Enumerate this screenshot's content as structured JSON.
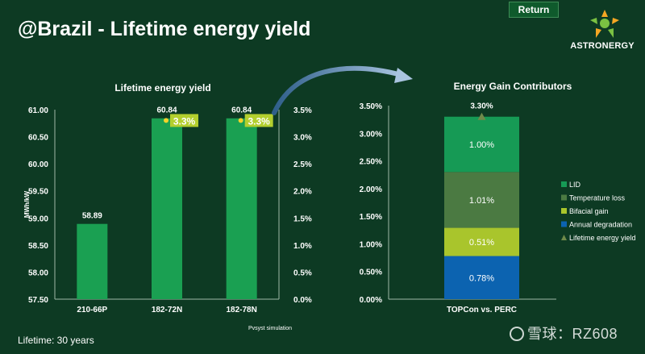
{
  "header": {
    "title": "@Brazil - Lifetime energy yield",
    "return_label": "Return",
    "logo_text": "ASTRONERGY"
  },
  "footer": {
    "lifetime_note": "Lifetime: 30 years",
    "watermark": "雪球：RZ608"
  },
  "colors": {
    "background": "#0d3a23",
    "bar_green": "#1aa052",
    "lid": "#169a55",
    "temperature_loss": "#4b7a42",
    "bifacial_gain": "#a9c52c",
    "annual_degradation": "#0c63b0",
    "marker": "#6f8a4a",
    "percent_box": "#b3cf2e",
    "percent_dot": "#f4d22a"
  },
  "chart_data": [
    {
      "type": "bar",
      "title": "Lifetime energy yield",
      "categories": [
        "210-66P",
        "182-72N",
        "182-78N"
      ],
      "series": [
        {
          "values": [
            58.89,
            60.84,
            60.84
          ]
        }
      ],
      "value_labels": [
        "58.89",
        "60.84",
        "60.84"
      ],
      "percent_labels": [
        "",
        "3.3%",
        "3.3%"
      ],
      "percent_values": [
        0,
        3.3,
        3.3
      ],
      "ylabel": "MWh/kW",
      "ylim": [
        57.5,
        61.0
      ],
      "y_ticks": [
        "61.00",
        "60.50",
        "60.00",
        "59.50",
        "59.00",
        "58.50",
        "58.00",
        "57.50"
      ],
      "y_tick_values": [
        61.0,
        60.5,
        60.0,
        59.5,
        59.0,
        58.5,
        58.0,
        57.5
      ],
      "y2lim": [
        0,
        3.5
      ],
      "y2_ticks": [
        "3.5%",
        "3.0%",
        "2.5%",
        "2.0%",
        "1.5%",
        "1.0%",
        "0.5%",
        "0.0%"
      ],
      "y2_tick_values": [
        3.5,
        3.0,
        2.5,
        2.0,
        1.5,
        1.0,
        0.5,
        0.0
      ],
      "annotation": "Pvsyst simulation",
      "grid": false
    },
    {
      "type": "bar",
      "stacked": true,
      "title": "Energy Gain Contributors",
      "categories": [
        "TOPCon vs. PERC"
      ],
      "series": [
        {
          "name": "Annual degradation",
          "values": [
            0.78
          ],
          "label": "0.78%"
        },
        {
          "name": "Bifacial gain",
          "values": [
            0.51
          ],
          "label": "0.51%"
        },
        {
          "name": "Temperature loss",
          "values": [
            1.01
          ],
          "label": "1.01%"
        },
        {
          "name": "LID",
          "values": [
            1.0
          ],
          "label": "1.00%"
        }
      ],
      "total": {
        "name": "Lifetime energy yield",
        "value": 3.3,
        "label": "3.30%"
      },
      "legend_order": [
        "LID",
        "Temperature loss",
        "Bifacial gain",
        "Annual degradation",
        "Lifetime energy yield"
      ],
      "y_ticks": [
        "3.50%",
        "3.00%",
        "2.50%",
        "2.00%",
        "1.50%",
        "1.00%",
        "0.50%",
        "0.00%"
      ],
      "y_tick_values": [
        3.5,
        3.0,
        2.5,
        2.0,
        1.5,
        1.0,
        0.5,
        0.0
      ],
      "ylim": [
        0,
        3.5
      ],
      "legend_position": "right",
      "grid": false
    }
  ]
}
